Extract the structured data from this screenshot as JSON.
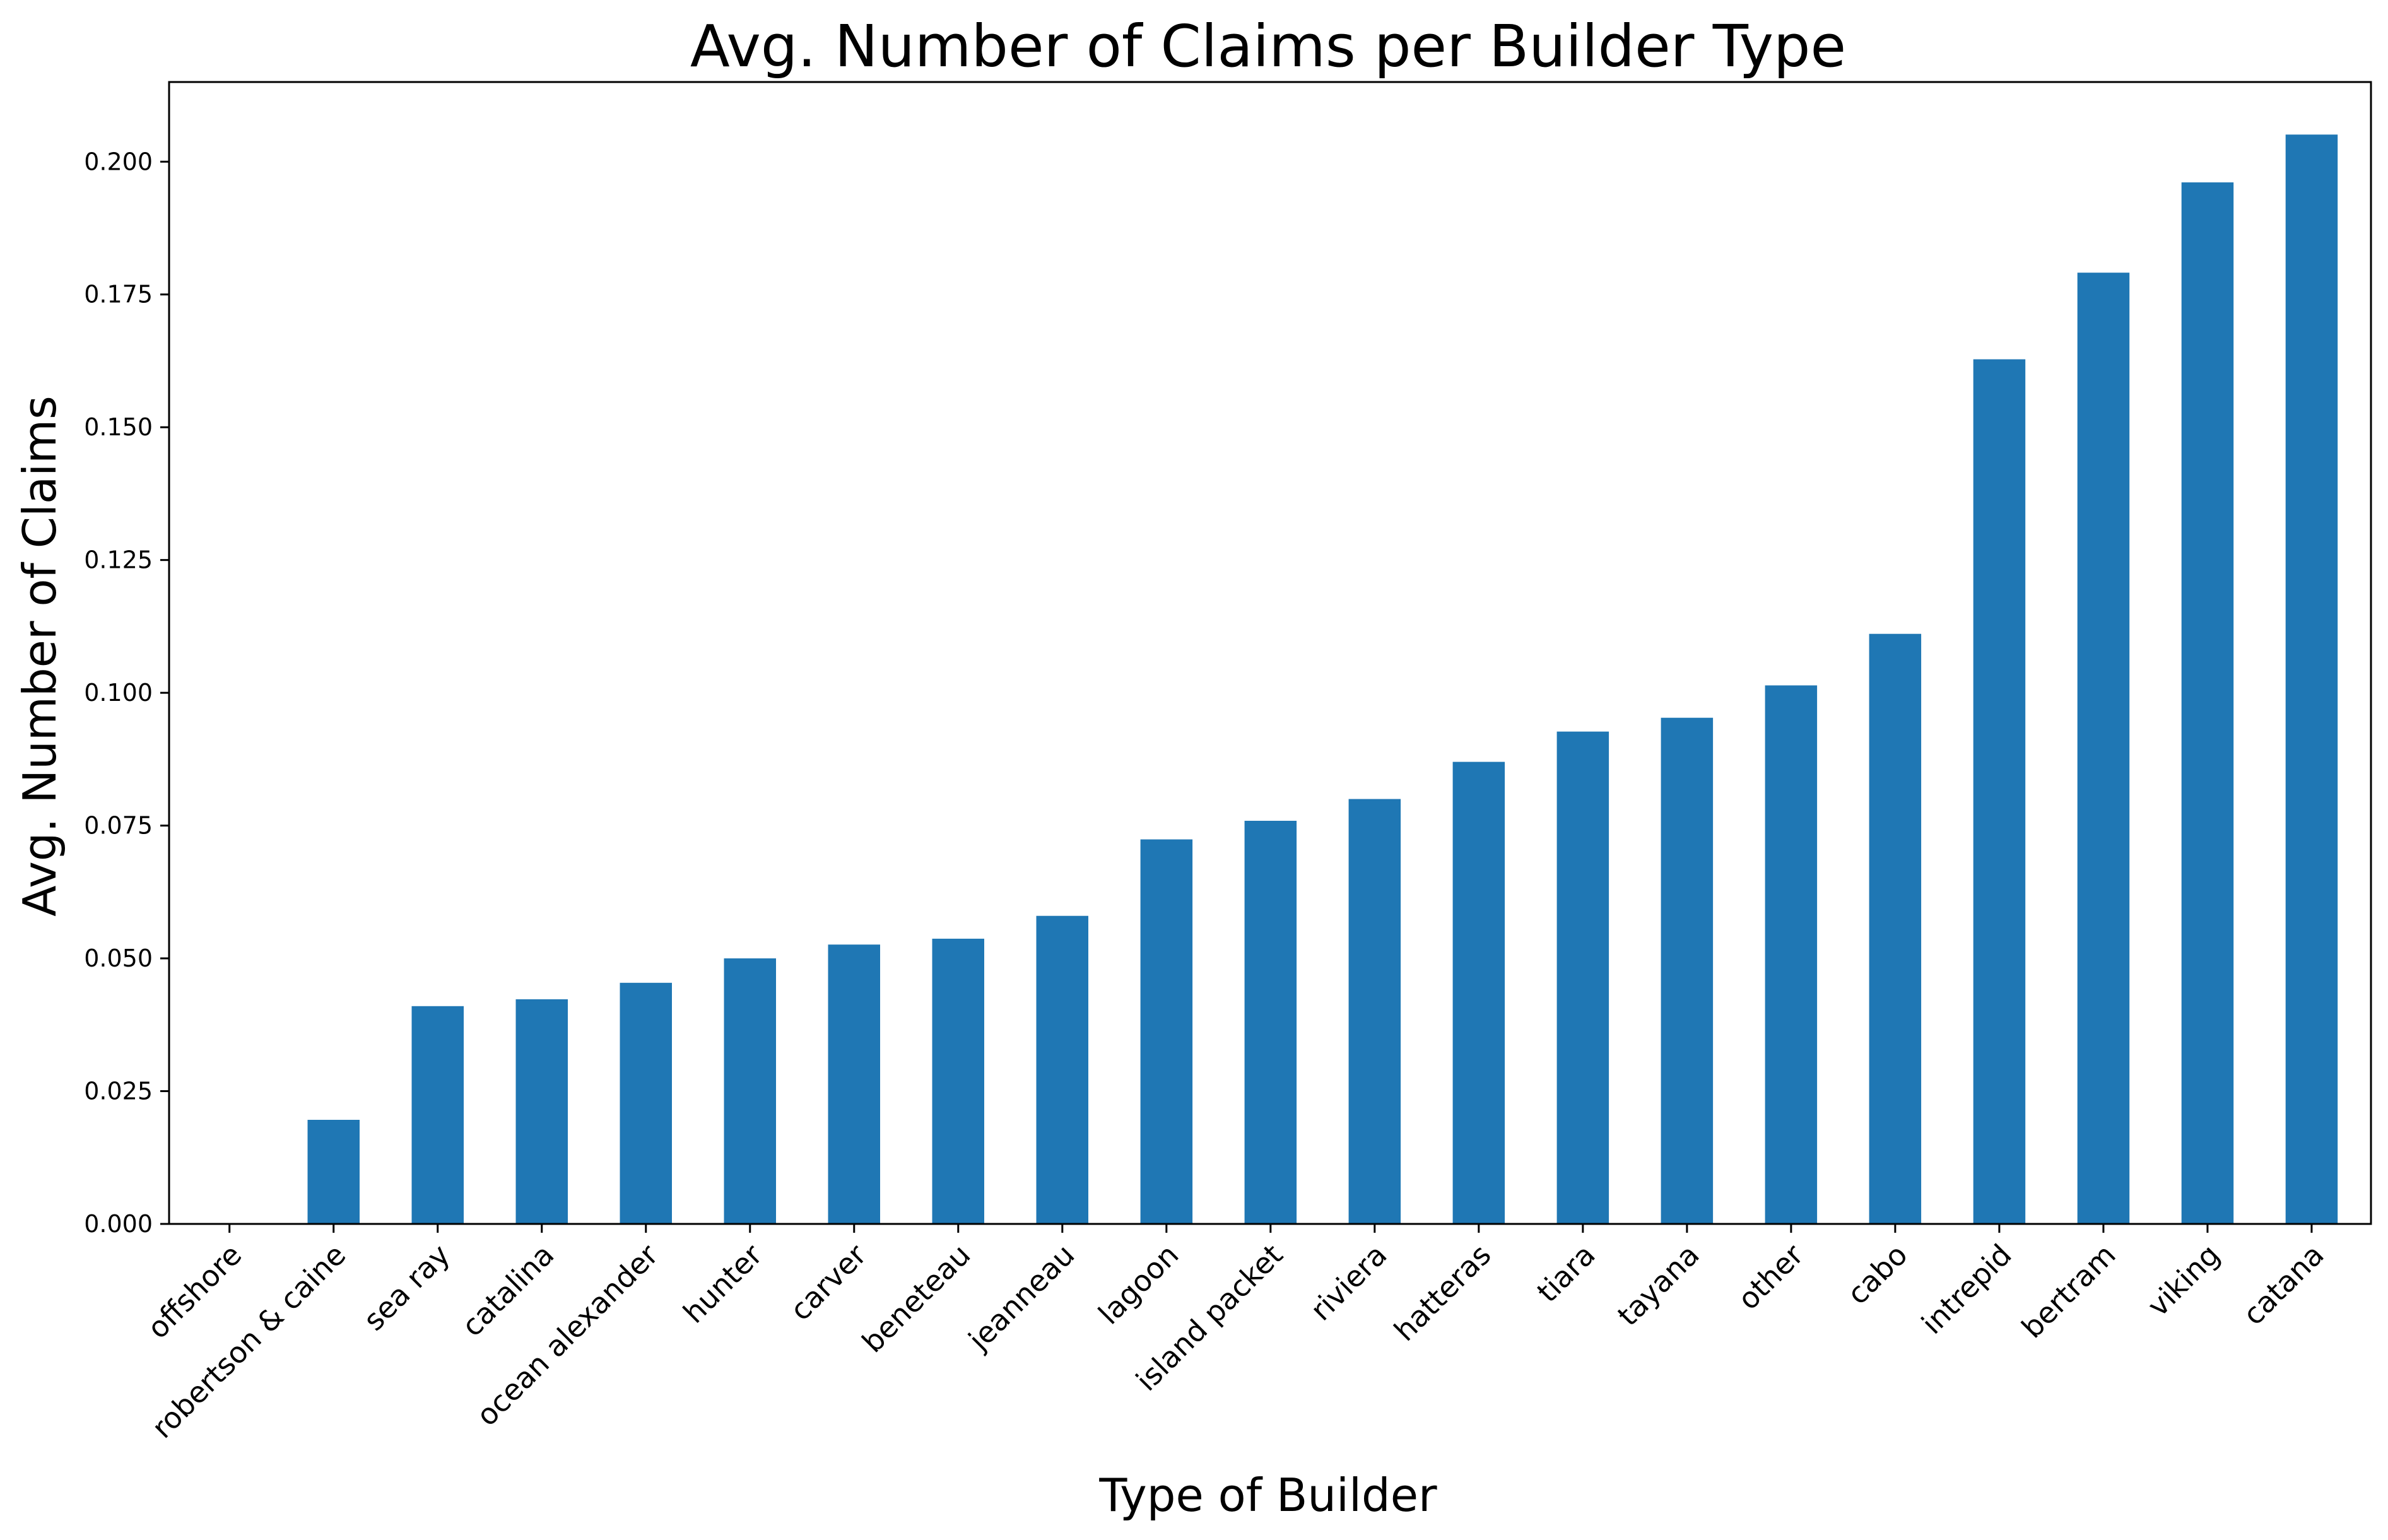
{
  "chart_data": {
    "type": "bar",
    "title": "Avg. Number of Claims per Builder Type",
    "xlabel": "Type of Builder",
    "ylabel": "Avg. Number of Claims",
    "categories": [
      "offshore",
      "robertson & caine",
      "sea ray",
      "catalina",
      "ocean alexander",
      "hunter",
      "carver",
      "beneteau",
      "jeanneau",
      "lagoon",
      "island packet",
      "riviera",
      "hatteras",
      "tiara",
      "tayana",
      "other",
      "cabo",
      "intrepid",
      "bertram",
      "viking",
      "catana"
    ],
    "values": [
      0.0,
      0.0196,
      0.041,
      0.0423,
      0.0454,
      0.05,
      0.0526,
      0.0537,
      0.058,
      0.0724,
      0.0759,
      0.08,
      0.087,
      0.0927,
      0.0953,
      0.1014,
      0.1111,
      0.1628,
      0.1791,
      0.1961,
      0.2051
    ],
    "ylim": [
      0,
      0.215
    ],
    "yticks": [
      "0.000",
      "0.025",
      "0.050",
      "0.075",
      "0.100",
      "0.125",
      "0.150",
      "0.175",
      "0.200"
    ],
    "grid": false,
    "legend": "none",
    "bar_color": "#1f77b4"
  }
}
